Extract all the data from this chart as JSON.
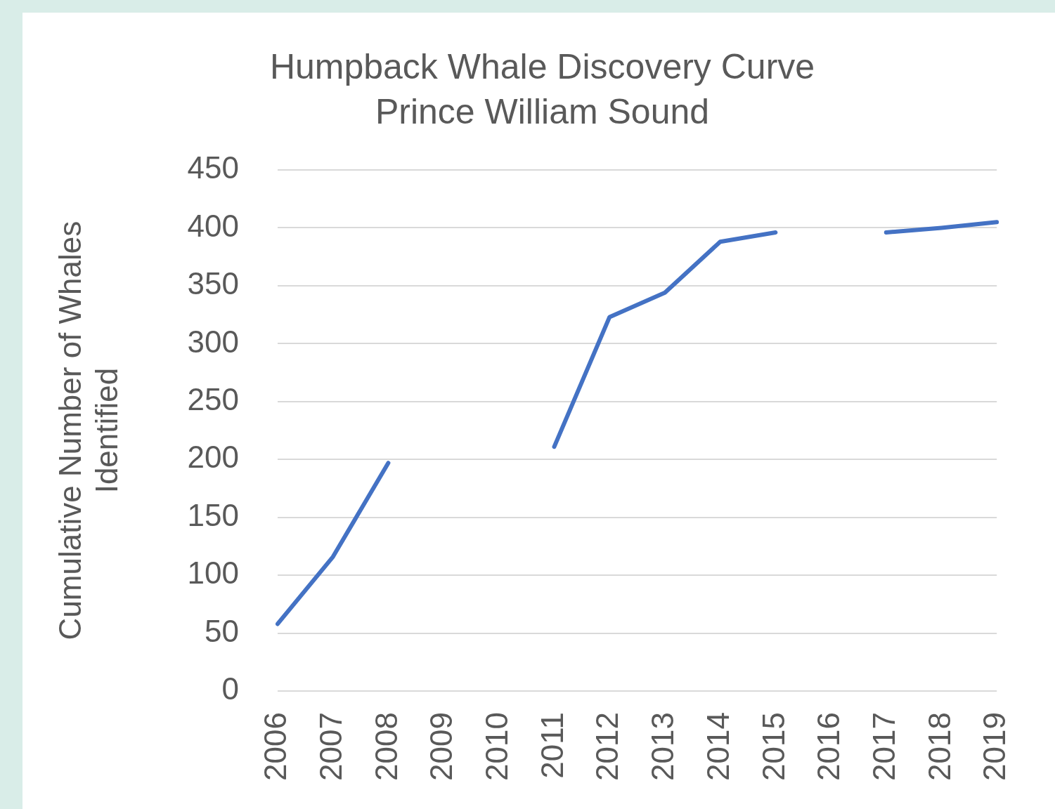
{
  "chart_data": {
    "type": "line",
    "title": "Humpback Whale Discovery Curve",
    "subtitle": "Prince William Sound",
    "ylabel": "Cumulative Number of Whales Identified",
    "categories": [
      "2006",
      "2007",
      "2008",
      "2009",
      "2010",
      "2011",
      "2012",
      "2013",
      "2014",
      "2015",
      "2016",
      "2017",
      "2018",
      "2019"
    ],
    "series": [
      {
        "color": "#4472c4",
        "values": [
          58,
          116,
          197,
          null,
          null,
          211,
          323,
          344,
          388,
          396,
          null,
          396,
          400,
          405
        ]
      }
    ],
    "ylim": [
      0,
      450
    ],
    "yticks": [
      0,
      50,
      100,
      150,
      200,
      250,
      300,
      350,
      400,
      450
    ],
    "grid": "y",
    "legend": false,
    "marker": "none",
    "line_style": "solid"
  }
}
